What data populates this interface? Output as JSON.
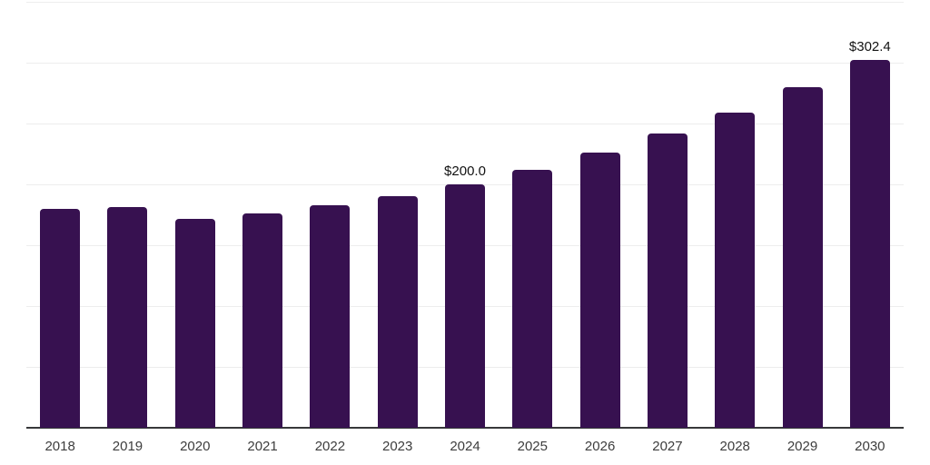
{
  "chart_data": {
    "type": "bar",
    "title": "",
    "categories": [
      "2018",
      "2019",
      "2020",
      "2021",
      "2022",
      "2023",
      "2024",
      "2025",
      "2026",
      "2027",
      "2028",
      "2029",
      "2030"
    ],
    "values": [
      180,
      181,
      172,
      176,
      183,
      190,
      200.0,
      212,
      226,
      242,
      259,
      280,
      302.4
    ],
    "data_labels": [
      null,
      null,
      null,
      null,
      null,
      null,
      "$200.0",
      null,
      null,
      null,
      null,
      null,
      "$302.4"
    ],
    "xlabel": "",
    "ylabel": "",
    "ylim": [
      0,
      350
    ],
    "gridline_interval": 50,
    "grid": true,
    "legend_position": "none",
    "y_axis_labels_visible": false,
    "colors": {
      "bar": "#371150",
      "gridline": "#ededed",
      "axis_line": "#37383a",
      "year_label": "#3d3d3d",
      "data_label": "#121212",
      "background": "#ffffff"
    }
  }
}
